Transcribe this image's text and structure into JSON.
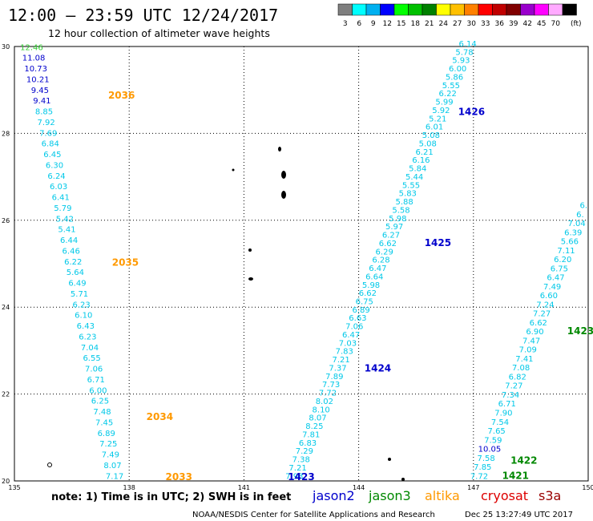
{
  "header": {
    "title": "12:00 – 23:59 UTC 12/24/2017",
    "subtitle": "12 hour collection of altimeter wave heights"
  },
  "legend": {
    "unit": "(ft)",
    "bins": [
      {
        "label": "3",
        "color": "#7f7f7f"
      },
      {
        "label": "6",
        "color": "#00ffff"
      },
      {
        "label": "9",
        "color": "#00b0f0"
      },
      {
        "label": "12",
        "color": "#0000ff"
      },
      {
        "label": "15",
        "color": "#00ff00"
      },
      {
        "label": "18",
        "color": "#00c000"
      },
      {
        "label": "21",
        "color": "#008000"
      },
      {
        "label": "24",
        "color": "#ffff00"
      },
      {
        "label": "27",
        "color": "#ffc000"
      },
      {
        "label": "30",
        "color": "#ff8000"
      },
      {
        "label": "33",
        "color": "#ff0000"
      },
      {
        "label": "36",
        "color": "#c00000"
      },
      {
        "label": "39",
        "color": "#800000"
      },
      {
        "label": "42",
        "color": "#9900cc"
      },
      {
        "label": "45",
        "color": "#ff00ff"
      },
      {
        "label": "70",
        "color": "#ffaaff"
      },
      {
        "label": "",
        "color": "#000000"
      }
    ]
  },
  "footer": {
    "note": "note:  1) Time is in UTC;  2) SWH is in feet",
    "satellites": [
      {
        "name": "jason2",
        "color": "#0000cc"
      },
      {
        "name": "jason3",
        "color": "#008800"
      },
      {
        "name": "altika",
        "color": "#ff9900"
      },
      {
        "name": "cryosat",
        "color": "#dd0000"
      },
      {
        "name": "s3a",
        "color": "#990000"
      }
    ],
    "credit": "NOAA/NESDIS Center for Satellite Applications and Research",
    "generated": "Dec 25 13:27:49 UTC 2017"
  },
  "chart_data": {
    "type": "scatter",
    "xlim": [
      135,
      150
    ],
    "ylim": [
      20,
      30
    ],
    "xticks": [
      "135",
      "138",
      "141",
      "144",
      "147",
      "150"
    ],
    "yticks": [
      "20",
      "22",
      "24",
      "26",
      "28",
      "30"
    ],
    "tick_values_x": [
      135,
      138,
      141,
      144,
      147,
      150
    ],
    "tick_values_y": [
      20,
      22,
      24,
      26,
      28,
      30
    ],
    "grid": true,
    "tracks": [
      {
        "satellite": "altika",
        "labels": [
          {
            "text": "2036",
            "x": 137.8,
            "y": 28.8
          },
          {
            "text": "2035",
            "x": 137.9,
            "y": 24.95
          },
          {
            "text": "2034",
            "x": 138.8,
            "y": 21.4
          },
          {
            "text": "2033",
            "x": 139.3,
            "y": 20.02
          }
        ],
        "start": [
          135.45,
          29.92
        ],
        "end": [
          137.62,
          20.05
        ],
        "values": [
          "12.46",
          "11.08",
          "10.73",
          "10.21",
          "9.45",
          "9.41",
          "8.85",
          "7.92",
          "7.69",
          "6.84",
          "6.45",
          "6.30",
          "6.24",
          "6.03",
          "6.41",
          "5.79",
          "5.42",
          "5.41",
          "6.44",
          "6.46",
          "6.22",
          "5.64",
          "6.49",
          "5.71",
          "6.23",
          "6.10",
          "6.43",
          "6.23",
          "7.04",
          "6.55",
          "7.06",
          "6.71",
          "6.00",
          "6.25",
          "7.48",
          "7.45",
          "6.89",
          "7.25",
          "7.49",
          "8.07",
          "7.17"
        ]
      },
      {
        "satellite": "jason2",
        "labels": [
          {
            "text": "1426",
            "x": 146.95,
            "y": 28.42
          },
          {
            "text": "1425",
            "x": 146.07,
            "y": 25.41
          },
          {
            "text": "1424",
            "x": 144.5,
            "y": 22.52
          },
          {
            "text": "1423",
            "x": 142.5,
            "y": 20.02
          }
        ],
        "start": [
          146.85,
          30.0
        ],
        "end": [
          142.32,
          20.05
        ],
        "values": [
          "6.14",
          "5.78",
          "5.93",
          "6.00",
          "5.86",
          "5.55",
          "6.22",
          "5.99",
          "5.92",
          "5.21",
          "6.01",
          "5.08",
          "5.08",
          "6.21",
          "6.16",
          "5.84",
          "5.44",
          "5.55",
          "5.83",
          "5.88",
          "5.58",
          "5.98",
          "5.97",
          "6.27",
          "6.62",
          "6.29",
          "6.28",
          "6.47",
          "6.64",
          "5.98",
          "6.62",
          "6.75",
          "6.89",
          "6.63",
          "7.06",
          "6.47",
          "7.03",
          "7.83",
          "7.21",
          "7.37",
          "7.89",
          "7.73",
          "7.72",
          "8.02",
          "8.10",
          "8.07",
          "8.25",
          "7.81",
          "6.83",
          "7.29",
          "7.38",
          "7.21",
          "7.93"
        ]
      },
      {
        "satellite": "jason3",
        "labels": [
          {
            "text": "1423",
            "x": 149.8,
            "y": 23.38
          },
          {
            "text": "1422",
            "x": 148.32,
            "y": 20.4
          },
          {
            "text": "1421",
            "x": 148.1,
            "y": 20.05
          }
        ],
        "start": [
          149.88,
          26.28
        ],
        "end": [
          147.15,
          20.05
        ],
        "values": [
          "6.",
          "6.",
          "7.04",
          "6.39",
          "5.66",
          "7.11",
          "6.20",
          "6.75",
          "6.47",
          "7.49",
          "6.60",
          "7.24",
          "7.27",
          "6.62",
          "6.90",
          "7.47",
          "7.09",
          "7.41",
          "7.08",
          "6.82",
          "7.27",
          "7.34",
          "6.71",
          "7.90",
          "7.54",
          "7.65",
          "7.59",
          "10.05",
          "7.58",
          "7.85",
          "7.72"
        ]
      }
    ]
  }
}
